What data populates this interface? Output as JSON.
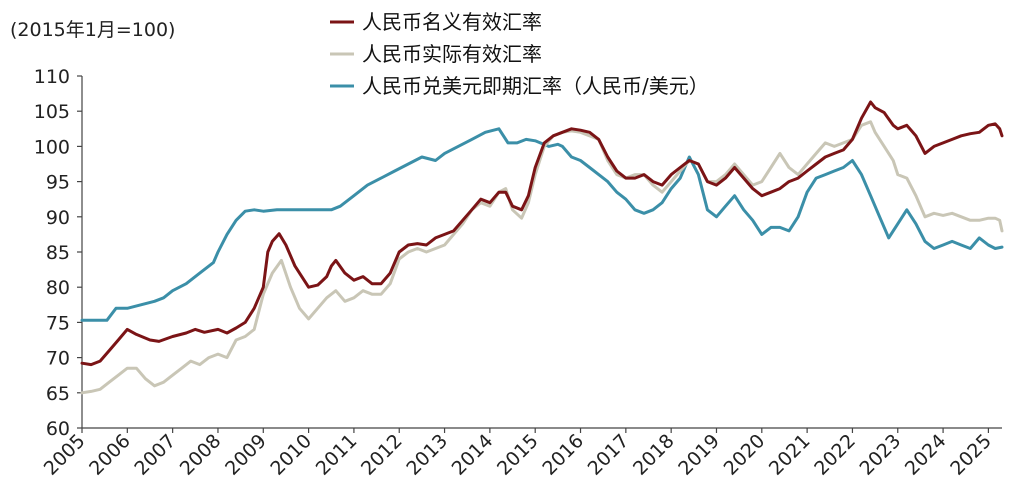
{
  "chart_data": {
    "type": "line",
    "unit_label": "(2015年1月=100)",
    "ylim": [
      60,
      110
    ],
    "yticks": [
      60,
      65,
      70,
      75,
      80,
      85,
      90,
      95,
      100,
      105,
      110
    ],
    "xlim": [
      2005,
      2025.3
    ],
    "xticks": [
      2005,
      2006,
      2007,
      2008,
      2009,
      2010,
      2011,
      2012,
      2013,
      2014,
      2015,
      2016,
      2017,
      2018,
      2019,
      2020,
      2021,
      2022,
      2023,
      2024,
      2025
    ],
    "grid": false,
    "legend_position": "top-center",
    "series": [
      {
        "name": "人民币名义有效汇率",
        "color": "#7b1416",
        "points": [
          [
            2005,
            69.2
          ],
          [
            2005.2,
            69
          ],
          [
            2005.4,
            69.5
          ],
          [
            2005.6,
            71
          ],
          [
            2005.8,
            72.5
          ],
          [
            2006,
            74
          ],
          [
            2006.2,
            73.3
          ],
          [
            2006.5,
            72.5
          ],
          [
            2006.7,
            72.3
          ],
          [
            2007,
            73
          ],
          [
            2007.3,
            73.5
          ],
          [
            2007.5,
            74
          ],
          [
            2007.7,
            73.6
          ],
          [
            2008,
            74
          ],
          [
            2008.2,
            73.5
          ],
          [
            2008.4,
            74.2
          ],
          [
            2008.6,
            75
          ],
          [
            2008.8,
            77
          ],
          [
            2009,
            80
          ],
          [
            2009.1,
            85
          ],
          [
            2009.2,
            86.5
          ],
          [
            2009.35,
            87.6
          ],
          [
            2009.5,
            86
          ],
          [
            2009.7,
            83
          ],
          [
            2009.9,
            81
          ],
          [
            2010,
            80
          ],
          [
            2010.2,
            80.3
          ],
          [
            2010.4,
            81.5
          ],
          [
            2010.5,
            83
          ],
          [
            2010.6,
            83.8
          ],
          [
            2010.8,
            82
          ],
          [
            2011,
            81
          ],
          [
            2011.2,
            81.5
          ],
          [
            2011.4,
            80.5
          ],
          [
            2011.6,
            80.5
          ],
          [
            2011.8,
            82
          ],
          [
            2012,
            85
          ],
          [
            2012.2,
            86
          ],
          [
            2012.4,
            86.2
          ],
          [
            2012.6,
            86
          ],
          [
            2012.8,
            87
          ],
          [
            2013,
            87.5
          ],
          [
            2013.2,
            88
          ],
          [
            2013.4,
            89.5
          ],
          [
            2013.6,
            91
          ],
          [
            2013.8,
            92.5
          ],
          [
            2014,
            92
          ],
          [
            2014.2,
            93.5
          ],
          [
            2014.35,
            93.5
          ],
          [
            2014.5,
            91.5
          ],
          [
            2014.7,
            91
          ],
          [
            2014.85,
            93
          ],
          [
            2015,
            97
          ],
          [
            2015.2,
            100.5
          ],
          [
            2015.4,
            101.5
          ],
          [
            2015.6,
            102
          ],
          [
            2015.8,
            102.5
          ],
          [
            2016,
            102.3
          ],
          [
            2016.2,
            102
          ],
          [
            2016.4,
            101
          ],
          [
            2016.6,
            98.5
          ],
          [
            2016.8,
            96.5
          ],
          [
            2017,
            95.5
          ],
          [
            2017.2,
            95.5
          ],
          [
            2017.4,
            96
          ],
          [
            2017.6,
            95
          ],
          [
            2017.8,
            94.5
          ],
          [
            2018,
            96
          ],
          [
            2018.2,
            97
          ],
          [
            2018.4,
            98
          ],
          [
            2018.6,
            97.5
          ],
          [
            2018.8,
            95
          ],
          [
            2019,
            94.5
          ],
          [
            2019.2,
            95.5
          ],
          [
            2019.4,
            97
          ],
          [
            2019.6,
            95.5
          ],
          [
            2019.8,
            94
          ],
          [
            2020,
            93
          ],
          [
            2020.2,
            93.5
          ],
          [
            2020.4,
            94
          ],
          [
            2020.6,
            95
          ],
          [
            2020.8,
            95.5
          ],
          [
            2021,
            96.5
          ],
          [
            2021.2,
            97.5
          ],
          [
            2021.4,
            98.5
          ],
          [
            2021.6,
            99
          ],
          [
            2021.8,
            99.5
          ],
          [
            2022,
            101
          ],
          [
            2022.2,
            104
          ],
          [
            2022.4,
            106.3
          ],
          [
            2022.5,
            105.5
          ],
          [
            2022.7,
            104.8
          ],
          [
            2022.9,
            103
          ],
          [
            2023,
            102.5
          ],
          [
            2023.2,
            103
          ],
          [
            2023.4,
            101.5
          ],
          [
            2023.6,
            99
          ],
          [
            2023.8,
            100
          ],
          [
            2024,
            100.5
          ],
          [
            2024.2,
            101
          ],
          [
            2024.4,
            101.5
          ],
          [
            2024.6,
            101.8
          ],
          [
            2024.8,
            102
          ],
          [
            2025,
            103
          ],
          [
            2025.15,
            103.2
          ],
          [
            2025.25,
            102.5
          ],
          [
            2025.3,
            101.5
          ]
        ]
      },
      {
        "name": "人民币实际有效汇率",
        "color": "#c9c6b6",
        "points": [
          [
            2005,
            65
          ],
          [
            2005.2,
            65.2
          ],
          [
            2005.4,
            65.5
          ],
          [
            2005.6,
            66.5
          ],
          [
            2005.8,
            67.5
          ],
          [
            2006,
            68.5
          ],
          [
            2006.2,
            68.5
          ],
          [
            2006.4,
            67
          ],
          [
            2006.6,
            66
          ],
          [
            2006.8,
            66.5
          ],
          [
            2007,
            67.5
          ],
          [
            2007.2,
            68.5
          ],
          [
            2007.4,
            69.5
          ],
          [
            2007.6,
            69
          ],
          [
            2007.8,
            70
          ],
          [
            2008,
            70.5
          ],
          [
            2008.2,
            70
          ],
          [
            2008.4,
            72.5
          ],
          [
            2008.6,
            73
          ],
          [
            2008.8,
            74
          ],
          [
            2009,
            79
          ],
          [
            2009.2,
            82
          ],
          [
            2009.4,
            83.8
          ],
          [
            2009.6,
            80
          ],
          [
            2009.8,
            77
          ],
          [
            2010,
            75.5
          ],
          [
            2010.2,
            77
          ],
          [
            2010.4,
            78.5
          ],
          [
            2010.6,
            79.5
          ],
          [
            2010.8,
            78
          ],
          [
            2011,
            78.5
          ],
          [
            2011.2,
            79.5
          ],
          [
            2011.4,
            79
          ],
          [
            2011.6,
            79
          ],
          [
            2011.8,
            80.5
          ],
          [
            2012,
            84
          ],
          [
            2012.2,
            85
          ],
          [
            2012.4,
            85.5
          ],
          [
            2012.6,
            85
          ],
          [
            2012.8,
            85.5
          ],
          [
            2013,
            86
          ],
          [
            2013.2,
            87.5
          ],
          [
            2013.4,
            89
          ],
          [
            2013.6,
            91
          ],
          [
            2013.8,
            92
          ],
          [
            2014,
            91.5
          ],
          [
            2014.2,
            93.5
          ],
          [
            2014.35,
            94
          ],
          [
            2014.5,
            91
          ],
          [
            2014.7,
            89.8
          ],
          [
            2014.85,
            92
          ],
          [
            2015,
            96
          ],
          [
            2015.2,
            100
          ],
          [
            2015.4,
            101.5
          ],
          [
            2015.6,
            102
          ],
          [
            2015.8,
            102.2
          ],
          [
            2016,
            102
          ],
          [
            2016.2,
            101.5
          ],
          [
            2016.4,
            101
          ],
          [
            2016.6,
            98
          ],
          [
            2016.8,
            96
          ],
          [
            2017,
            95.5
          ],
          [
            2017.2,
            96
          ],
          [
            2017.4,
            96
          ],
          [
            2017.6,
            94.5
          ],
          [
            2017.8,
            93.5
          ],
          [
            2018,
            95
          ],
          [
            2018.2,
            96.5
          ],
          [
            2018.4,
            98
          ],
          [
            2018.6,
            97.5
          ],
          [
            2018.8,
            95
          ],
          [
            2019,
            95
          ],
          [
            2019.2,
            96
          ],
          [
            2019.4,
            97.5
          ],
          [
            2019.6,
            96
          ],
          [
            2019.8,
            94.5
          ],
          [
            2020,
            95
          ],
          [
            2020.2,
            97
          ],
          [
            2020.4,
            99
          ],
          [
            2020.6,
            97
          ],
          [
            2020.8,
            96
          ],
          [
            2021,
            97.5
          ],
          [
            2021.2,
            99
          ],
          [
            2021.4,
            100.5
          ],
          [
            2021.6,
            100
          ],
          [
            2021.8,
            100.5
          ],
          [
            2022,
            101
          ],
          [
            2022.2,
            103
          ],
          [
            2022.4,
            103.5
          ],
          [
            2022.5,
            102
          ],
          [
            2022.7,
            100
          ],
          [
            2022.9,
            98
          ],
          [
            2023,
            96
          ],
          [
            2023.2,
            95.5
          ],
          [
            2023.4,
            93
          ],
          [
            2023.6,
            90
          ],
          [
            2023.8,
            90.5
          ],
          [
            2024,
            90.2
          ],
          [
            2024.2,
            90.5
          ],
          [
            2024.4,
            90
          ],
          [
            2024.6,
            89.5
          ],
          [
            2024.8,
            89.5
          ],
          [
            2025,
            89.8
          ],
          [
            2025.15,
            89.8
          ],
          [
            2025.25,
            89.5
          ],
          [
            2025.3,
            88
          ]
        ]
      },
      {
        "name": "人民币兑美元即期汇率（人民币/美元）",
        "color": "#3b8fa8",
        "points": [
          [
            2005,
            75.3
          ],
          [
            2005.3,
            75.3
          ],
          [
            2005.55,
            75.3
          ],
          [
            2005.75,
            77
          ],
          [
            2006,
            77
          ],
          [
            2006.3,
            77.5
          ],
          [
            2006.6,
            78
          ],
          [
            2006.8,
            78.5
          ],
          [
            2007,
            79.5
          ],
          [
            2007.3,
            80.5
          ],
          [
            2007.6,
            82
          ],
          [
            2007.9,
            83.5
          ],
          [
            2008,
            85
          ],
          [
            2008.2,
            87.5
          ],
          [
            2008.4,
            89.5
          ],
          [
            2008.6,
            90.8
          ],
          [
            2008.8,
            91
          ],
          [
            2009,
            90.8
          ],
          [
            2009.3,
            91
          ],
          [
            2009.6,
            91
          ],
          [
            2010,
            91
          ],
          [
            2010.3,
            91
          ],
          [
            2010.5,
            91
          ],
          [
            2010.7,
            91.5
          ],
          [
            2011,
            93
          ],
          [
            2011.3,
            94.5
          ],
          [
            2011.6,
            95.5
          ],
          [
            2011.9,
            96.5
          ],
          [
            2012.2,
            97.5
          ],
          [
            2012.5,
            98.5
          ],
          [
            2012.8,
            98
          ],
          [
            2013,
            99
          ],
          [
            2013.3,
            100
          ],
          [
            2013.6,
            101
          ],
          [
            2013.9,
            102
          ],
          [
            2014.2,
            102.5
          ],
          [
            2014.4,
            100.5
          ],
          [
            2014.6,
            100.5
          ],
          [
            2014.8,
            101
          ],
          [
            2015,
            100.8
          ],
          [
            2015.3,
            100
          ],
          [
            2015.5,
            100.3
          ],
          [
            2015.6,
            100
          ],
          [
            2015.8,
            98.5
          ],
          [
            2016,
            98
          ],
          [
            2016.2,
            97
          ],
          [
            2016.4,
            96
          ],
          [
            2016.6,
            95
          ],
          [
            2016.8,
            93.5
          ],
          [
            2017,
            92.5
          ],
          [
            2017.2,
            91
          ],
          [
            2017.4,
            90.5
          ],
          [
            2017.6,
            91
          ],
          [
            2017.8,
            92
          ],
          [
            2018,
            94
          ],
          [
            2018.2,
            95.5
          ],
          [
            2018.4,
            98.5
          ],
          [
            2018.6,
            96
          ],
          [
            2018.8,
            91
          ],
          [
            2019,
            90
          ],
          [
            2019.2,
            91.5
          ],
          [
            2019.4,
            93
          ],
          [
            2019.6,
            91
          ],
          [
            2019.8,
            89.5
          ],
          [
            2020,
            87.5
          ],
          [
            2020.2,
            88.5
          ],
          [
            2020.4,
            88.5
          ],
          [
            2020.6,
            88
          ],
          [
            2020.8,
            90
          ],
          [
            2021,
            93.5
          ],
          [
            2021.2,
            95.5
          ],
          [
            2021.4,
            96
          ],
          [
            2021.6,
            96.5
          ],
          [
            2021.8,
            97
          ],
          [
            2022,
            98
          ],
          [
            2022.2,
            96
          ],
          [
            2022.4,
            93
          ],
          [
            2022.6,
            90
          ],
          [
            2022.8,
            87
          ],
          [
            2023,
            89
          ],
          [
            2023.2,
            91
          ],
          [
            2023.4,
            89
          ],
          [
            2023.6,
            86.5
          ],
          [
            2023.8,
            85.5
          ],
          [
            2024,
            86
          ],
          [
            2024.2,
            86.5
          ],
          [
            2024.4,
            86
          ],
          [
            2024.6,
            85.5
          ],
          [
            2024.8,
            87
          ],
          [
            2025,
            86
          ],
          [
            2025.15,
            85.5
          ],
          [
            2025.3,
            85.7
          ]
        ]
      }
    ]
  }
}
